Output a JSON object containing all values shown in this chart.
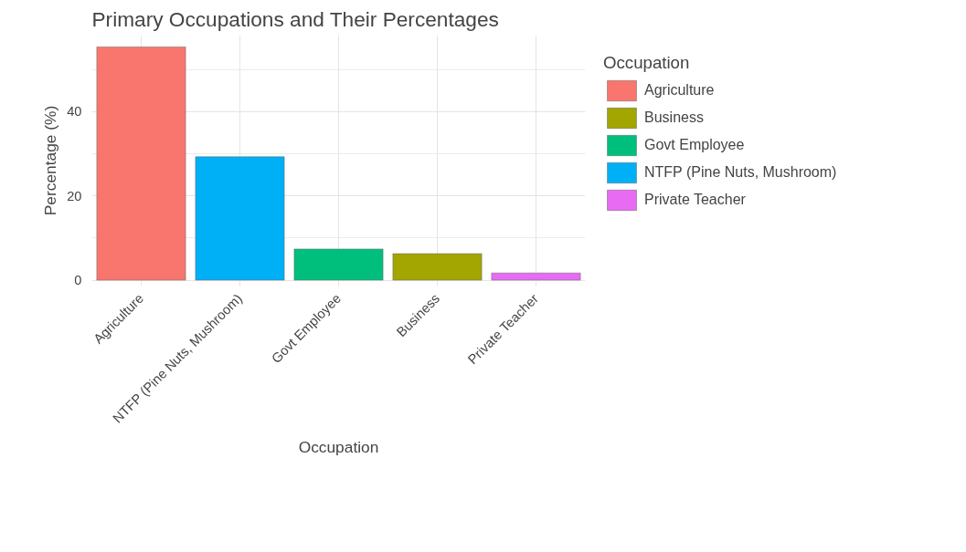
{
  "chart_data": {
    "type": "bar",
    "title": "Primary Occupations and Their Percentages",
    "xlabel": "Occupation",
    "ylabel": "Percentage (%)",
    "legend_title": "Occupation",
    "categories": [
      "Agriculture",
      "NTFP (Pine Nuts, Mushroom)",
      "Govt Employee",
      "Business",
      "Private Teacher"
    ],
    "series": [
      {
        "name": "Agriculture",
        "color": "#f8766d",
        "values": [
          55.4,
          null,
          null,
          null,
          null
        ]
      },
      {
        "name": "Business",
        "color": "#a3a500",
        "values": [
          null,
          null,
          null,
          6.3,
          null
        ]
      },
      {
        "name": "Govt Employee",
        "color": "#00bf7d",
        "values": [
          null,
          null,
          7.4,
          null,
          null
        ]
      },
      {
        "name": "NTFP (Pine Nuts, Mushroom)",
        "color": "#00b0f6",
        "values": [
          null,
          29.3,
          null,
          null,
          null
        ]
      },
      {
        "name": "Private Teacher",
        "color": "#e76bf3",
        "values": [
          null,
          null,
          null,
          null,
          1.7
        ]
      }
    ],
    "ylim": [
      -1.4,
      58.2
    ],
    "yticks": [
      0,
      {
        "value": 10,
        "label": null
      },
      20,
      {
        "value": 30,
        "label": null
      },
      40,
      {
        "value": 50,
        "label": null
      }
    ],
    "grid": true,
    "legend": "right"
  }
}
